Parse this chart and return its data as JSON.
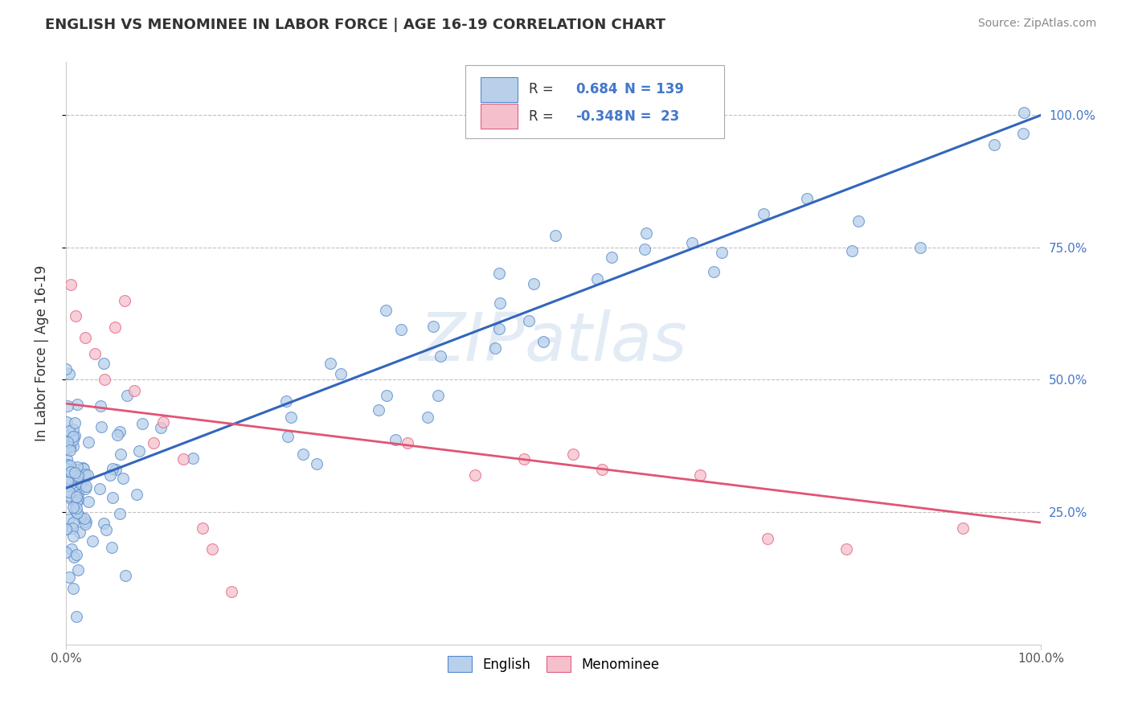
{
  "title": "ENGLISH VS MENOMINEE IN LABOR FORCE | AGE 16-19 CORRELATION CHART",
  "source": "Source: ZipAtlas.com",
  "ylabel_left": "In Labor Force | Age 16-19",
  "x_tick_labels": [
    "0.0%",
    "100.0%"
  ],
  "y_tick_labels_right": [
    "25.0%",
    "50.0%",
    "75.0%",
    "100.0%"
  ],
  "english_R": 0.684,
  "english_N": 139,
  "menominee_R": -0.348,
  "menominee_N": 23,
  "legend_labels": [
    "English",
    "Menominee"
  ],
  "blue_fill": "#b8d0ea",
  "blue_edge": "#5588cc",
  "pink_fill": "#f5c0cc",
  "pink_edge": "#e06080",
  "blue_line": "#3366bb",
  "pink_line": "#e05575",
  "background_color": "#ffffff",
  "grid_color": "#bbbbbb",
  "right_tick_color": "#4477cc",
  "title_color": "#333333",
  "source_color": "#888888"
}
